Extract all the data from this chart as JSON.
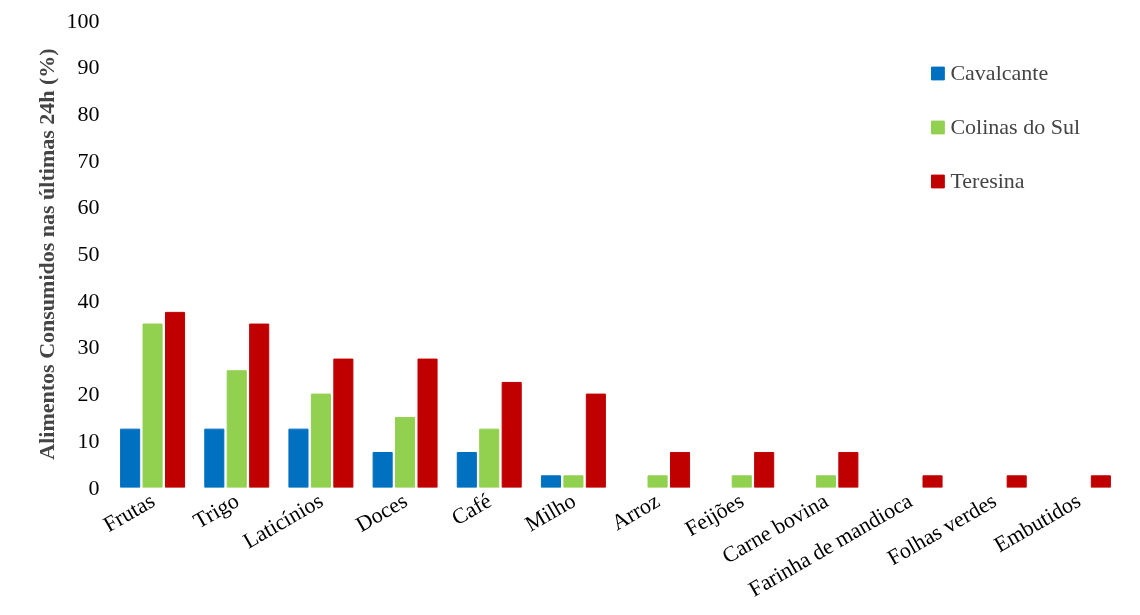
{
  "chart_data": {
    "type": "bar",
    "ylabel": "Alimentos Consumidos nas últimas 24h (%)",
    "categories": [
      "Frutas",
      "Trigo",
      "Laticínios",
      "Doces",
      "Café",
      "Milho",
      "Arroz",
      "Feijões",
      "Carne bovina",
      "Farinha de mandioca",
      "Folhas verdes",
      "Embutidos"
    ],
    "series": [
      {
        "name": "Cavalcante",
        "color": "#0070c0",
        "values": [
          12.5,
          12.5,
          12.5,
          7.5,
          7.5,
          2.5,
          null,
          null,
          null,
          null,
          null,
          null
        ]
      },
      {
        "name": "Colinas do Sul",
        "color": "#92d050",
        "values": [
          35,
          25,
          20,
          15,
          12.5,
          2.5,
          2.5,
          2.5,
          2.5,
          null,
          null,
          null
        ]
      },
      {
        "name": "Teresina",
        "color": "#c00000",
        "values": [
          37.5,
          35,
          27.5,
          27.5,
          22.5,
          20,
          7.5,
          7.5,
          7.5,
          2.5,
          2.5,
          2.5
        ]
      }
    ],
    "ylim": [
      0,
      100
    ],
    "yticks": [
      0,
      10,
      20,
      30,
      40,
      50,
      60,
      70,
      80,
      90,
      100
    ],
    "legend": "top right"
  }
}
